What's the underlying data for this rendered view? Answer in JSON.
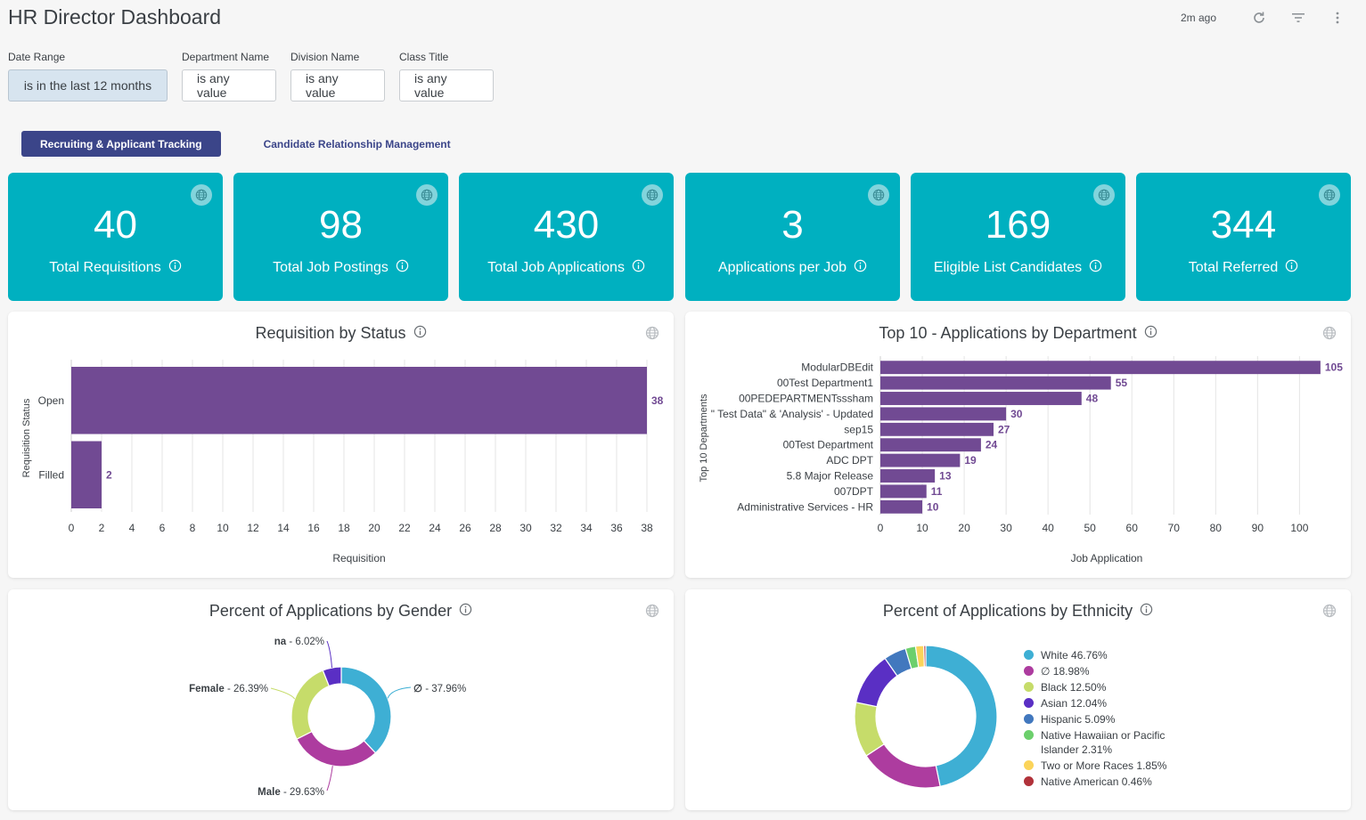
{
  "header": {
    "title": "HR Director Dashboard",
    "last_updated": "2m ago",
    "icons": [
      "refresh-icon",
      "filter-icon",
      "more-vert-icon"
    ]
  },
  "filters": [
    {
      "label": "Date Range",
      "value": "is in the last 12 months",
      "active": true
    },
    {
      "label": "Department Name",
      "value": "is any value",
      "active": false
    },
    {
      "label": "Division Name",
      "value": "is any value",
      "active": false
    },
    {
      "label": "Class Title",
      "value": "is any value",
      "active": false
    }
  ],
  "tabs": [
    {
      "label": "Recruiting & Applicant Tracking",
      "active": true
    },
    {
      "label": "Candidate Relationship Management",
      "active": false
    }
  ],
  "kpis": [
    {
      "value": "40",
      "label": "Total Requisitions"
    },
    {
      "value": "98",
      "label": "Total Job Postings"
    },
    {
      "value": "430",
      "label": "Total Job Applications"
    },
    {
      "value": "3",
      "label": "Applications per Job"
    },
    {
      "value": "169",
      "label": "Eligible List Candidates"
    },
    {
      "value": "344",
      "label": "Total Referred"
    }
  ],
  "colors": {
    "kpi_bg": "#00b0c0",
    "bar": "#714a93",
    "tab_active": "#3b4589"
  },
  "chart_data": [
    {
      "type": "bar",
      "orientation": "horizontal",
      "title": "Requisition by Status",
      "categories": [
        "Open",
        "Filled"
      ],
      "values": [
        38,
        2
      ],
      "xlabel": "Requisition",
      "ylabel": "Requisition Status",
      "xlim": [
        0,
        38
      ],
      "xticks": [
        0,
        2,
        4,
        6,
        8,
        10,
        12,
        14,
        16,
        18,
        20,
        22,
        24,
        26,
        28,
        30,
        32,
        34,
        36,
        38
      ],
      "grid": true,
      "color": "#714a93"
    },
    {
      "type": "bar",
      "orientation": "horizontal",
      "title": "Top 10 - Applications by Department",
      "categories": [
        "ModularDBEdit",
        "00Test Department1",
        "00PEDEPARTMENTsssham",
        "\" Test Data\" & 'Analysis' - Updated",
        "sep15",
        "00Test Department",
        "ADC DPT",
        "5.8 Major Release",
        "007DPT",
        "Administrative Services - HR"
      ],
      "values": [
        105,
        55,
        48,
        30,
        27,
        24,
        19,
        13,
        11,
        10
      ],
      "xlabel": "Job Application",
      "ylabel": "Top 10 Departments",
      "xlim": [
        0,
        108
      ],
      "xticks": [
        0,
        10,
        20,
        30,
        40,
        50,
        60,
        70,
        80,
        90,
        100
      ],
      "grid": true,
      "color": "#714a93"
    },
    {
      "type": "pie",
      "donut": true,
      "title": "Percent of Applications by Gender",
      "slices": [
        {
          "label": "∅",
          "value": 37.96,
          "display": "37.96%",
          "color": "#3eafd4"
        },
        {
          "label": "Male",
          "value": 29.63,
          "display": "29.63%",
          "color": "#ad3c9f"
        },
        {
          "label": "Female",
          "value": 26.39,
          "display": "26.39%",
          "color": "#c6dc6a"
        },
        {
          "label": "na",
          "value": 6.02,
          "display": "6.02%",
          "color": "#5a2fc4"
        }
      ],
      "legend": "callouts"
    },
    {
      "type": "pie",
      "donut": true,
      "title": "Percent of Applications by Ethnicity",
      "slices": [
        {
          "label": "White",
          "value": 46.76,
          "display": "46.76%",
          "color": "#3eafd4"
        },
        {
          "label": "∅",
          "value": 18.98,
          "display": "18.98%",
          "color": "#ad3c9f"
        },
        {
          "label": "Black",
          "value": 12.5,
          "display": "12.50%",
          "color": "#c6dc6a"
        },
        {
          "label": "Asian",
          "value": 12.04,
          "display": "12.04%",
          "color": "#5a2fc4"
        },
        {
          "label": "Hispanic",
          "value": 5.09,
          "display": "5.09%",
          "color": "#4278be"
        },
        {
          "label": "Native Hawaiian or Pacific Islander",
          "value": 2.31,
          "display": "2.31%",
          "color": "#6ccf6c"
        },
        {
          "label": "Two or More Races",
          "value": 1.85,
          "display": "1.85%",
          "color": "#fbd45a"
        },
        {
          "label": "Native American",
          "value": 0.46,
          "display": "0.46%",
          "color": "#b1323a"
        }
      ],
      "legend": "right"
    }
  ]
}
